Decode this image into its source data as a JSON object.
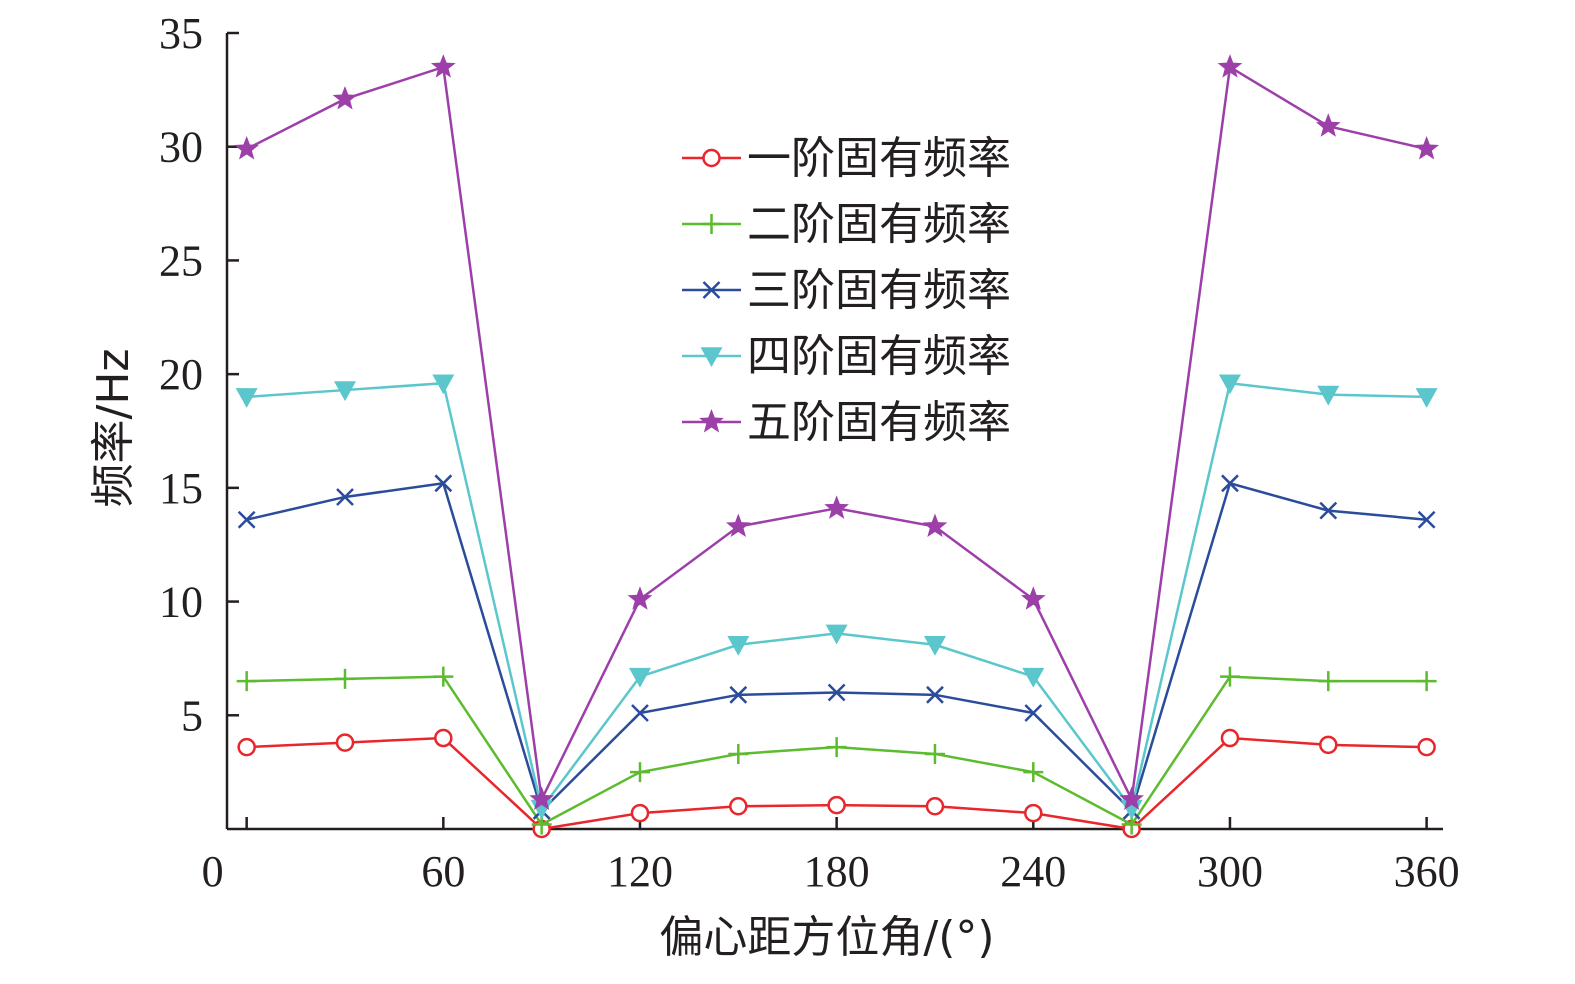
{
  "chart_data": {
    "type": "line",
    "xlabel": "偏心距方位角/(°)",
    "ylabel": "频率/Hz",
    "xlim": [
      -6,
      365
    ],
    "ylim": [
      0,
      35
    ],
    "xticks": [
      0,
      60,
      120,
      180,
      240,
      300,
      360
    ],
    "yticks": [
      5,
      10,
      15,
      20,
      25,
      30,
      35
    ],
    "x": [
      0,
      30,
      60,
      90,
      120,
      150,
      180,
      210,
      240,
      270,
      300,
      330,
      360
    ],
    "legend_position": "top-center",
    "grid": false,
    "series": [
      {
        "name": "一阶固有频率",
        "color": "#e8262c",
        "marker": "circle",
        "values": [
          3.6,
          3.8,
          4.0,
          0.0,
          0.7,
          1.0,
          1.05,
          1.0,
          0.7,
          0.0,
          4.0,
          3.7,
          3.6
        ]
      },
      {
        "name": "二阶固有频率",
        "color": "#5cbb2e",
        "marker": "plus",
        "values": [
          6.5,
          6.6,
          6.7,
          0.2,
          2.5,
          3.3,
          3.6,
          3.3,
          2.5,
          0.2,
          6.7,
          6.5,
          6.5
        ]
      },
      {
        "name": "三阶固有频率",
        "color": "#2b4b9b",
        "marker": "x",
        "values": [
          13.6,
          14.6,
          15.2,
          0.8,
          5.1,
          5.9,
          6.0,
          5.9,
          5.1,
          0.8,
          15.2,
          14.0,
          13.6
        ]
      },
      {
        "name": "四阶固有频率",
        "color": "#5bc7cc",
        "marker": "triangle-down",
        "values": [
          19.0,
          19.3,
          19.6,
          0.9,
          6.7,
          8.1,
          8.6,
          8.1,
          6.7,
          0.9,
          19.6,
          19.1,
          19.0
        ]
      },
      {
        "name": "五阶固有频率",
        "color": "#9d3fa9",
        "marker": "star",
        "values": [
          29.9,
          32.1,
          33.5,
          1.3,
          10.1,
          13.3,
          14.1,
          13.3,
          10.1,
          1.3,
          33.5,
          30.9,
          29.9
        ]
      }
    ]
  }
}
